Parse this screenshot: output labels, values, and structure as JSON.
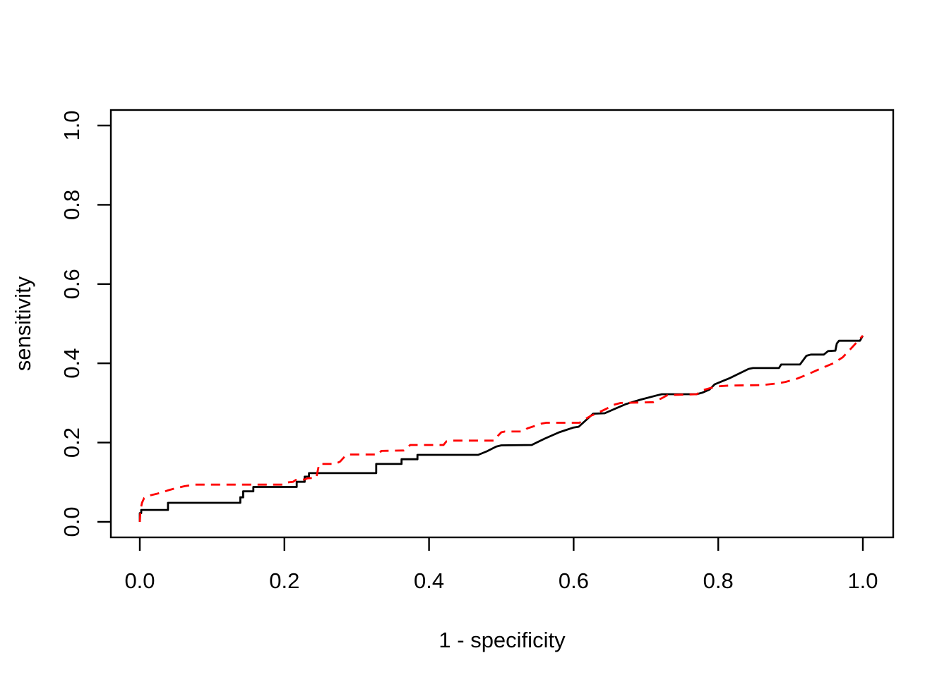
{
  "figure": {
    "background": "#ffffff",
    "frame_color": "#000000"
  },
  "chart_data": {
    "type": "line",
    "subtype": "roc-step-curves",
    "title": "",
    "xlabel": "1 - specificity",
    "ylabel": "sensitivity",
    "xlim": [
      0,
      1
    ],
    "ylim": [
      0,
      1
    ],
    "grid": false,
    "legend_position": "none",
    "xticks": {
      "values": [
        0.0,
        0.2,
        0.4,
        0.6,
        0.8,
        1.0
      ],
      "labels": [
        "0.0",
        "0.2",
        "0.4",
        "0.6",
        "0.8",
        "1.0"
      ]
    },
    "yticks": {
      "values": [
        0.0,
        0.2,
        0.4,
        0.6,
        0.8,
        1.0
      ],
      "labels": [
        "0.0",
        "0.2",
        "0.4",
        "0.6",
        "0.8",
        "1.0"
      ]
    },
    "series": [
      {
        "name": "roc-curve-solid-black",
        "color": "#000000",
        "style": "solid",
        "points": [
          [
            0.0,
            0.0
          ],
          [
            0.0,
            0.022
          ],
          [
            0.002,
            0.022
          ],
          [
            0.002,
            0.03
          ],
          [
            0.039,
            0.03
          ],
          [
            0.039,
            0.048
          ],
          [
            0.139,
            0.048
          ],
          [
            0.139,
            0.062
          ],
          [
            0.143,
            0.062
          ],
          [
            0.143,
            0.077
          ],
          [
            0.157,
            0.077
          ],
          [
            0.157,
            0.088
          ],
          [
            0.217,
            0.088
          ],
          [
            0.217,
            0.101
          ],
          [
            0.228,
            0.101
          ],
          [
            0.228,
            0.114
          ],
          [
            0.234,
            0.114
          ],
          [
            0.234,
            0.123
          ],
          [
            0.327,
            0.123
          ],
          [
            0.327,
            0.146
          ],
          [
            0.362,
            0.146
          ],
          [
            0.362,
            0.158
          ],
          [
            0.384,
            0.158
          ],
          [
            0.384,
            0.169
          ],
          [
            0.468,
            0.169
          ],
          [
            0.48,
            0.178
          ],
          [
            0.493,
            0.19
          ],
          [
            0.5,
            0.193
          ],
          [
            0.542,
            0.194
          ],
          [
            0.56,
            0.21
          ],
          [
            0.58,
            0.226
          ],
          [
            0.6,
            0.238
          ],
          [
            0.607,
            0.24
          ],
          [
            0.627,
            0.273
          ],
          [
            0.643,
            0.274
          ],
          [
            0.653,
            0.282
          ],
          [
            0.672,
            0.297
          ],
          [
            0.692,
            0.308
          ],
          [
            0.715,
            0.319
          ],
          [
            0.722,
            0.322
          ],
          [
            0.77,
            0.322
          ],
          [
            0.778,
            0.326
          ],
          [
            0.788,
            0.334
          ],
          [
            0.795,
            0.347
          ],
          [
            0.815,
            0.362
          ],
          [
            0.842,
            0.386
          ],
          [
            0.848,
            0.388
          ],
          [
            0.884,
            0.388
          ],
          [
            0.887,
            0.397
          ],
          [
            0.913,
            0.397
          ],
          [
            0.922,
            0.419
          ],
          [
            0.928,
            0.422
          ],
          [
            0.946,
            0.422
          ],
          [
            0.952,
            0.431
          ],
          [
            0.962,
            0.432
          ],
          [
            0.964,
            0.45
          ],
          [
            0.967,
            0.457
          ],
          [
            0.996,
            0.457
          ],
          [
            1.0,
            0.47
          ]
        ]
      },
      {
        "name": "roc-curve-dashed-red",
        "color": "#ff0000",
        "style": "dashed",
        "points": [
          [
            0.0,
            0.0
          ],
          [
            0.001,
            0.03
          ],
          [
            0.003,
            0.048
          ],
          [
            0.006,
            0.06
          ],
          [
            0.015,
            0.067
          ],
          [
            0.028,
            0.073
          ],
          [
            0.04,
            0.08
          ],
          [
            0.052,
            0.086
          ],
          [
            0.062,
            0.09
          ],
          [
            0.075,
            0.094
          ],
          [
            0.198,
            0.094
          ],
          [
            0.202,
            0.099
          ],
          [
            0.212,
            0.101
          ],
          [
            0.216,
            0.106
          ],
          [
            0.228,
            0.107
          ],
          [
            0.232,
            0.11
          ],
          [
            0.244,
            0.111
          ],
          [
            0.248,
            0.146
          ],
          [
            0.27,
            0.146
          ],
          [
            0.277,
            0.152
          ],
          [
            0.284,
            0.166
          ],
          [
            0.288,
            0.17
          ],
          [
            0.33,
            0.17
          ],
          [
            0.334,
            0.179
          ],
          [
            0.365,
            0.18
          ],
          [
            0.374,
            0.194
          ],
          [
            0.42,
            0.194
          ],
          [
            0.424,
            0.203
          ],
          [
            0.43,
            0.205
          ],
          [
            0.49,
            0.205
          ],
          [
            0.494,
            0.215
          ],
          [
            0.5,
            0.226
          ],
          [
            0.505,
            0.228
          ],
          [
            0.53,
            0.228
          ],
          [
            0.536,
            0.236
          ],
          [
            0.548,
            0.243
          ],
          [
            0.556,
            0.248
          ],
          [
            0.562,
            0.25
          ],
          [
            0.608,
            0.25
          ],
          [
            0.615,
            0.258
          ],
          [
            0.624,
            0.268
          ],
          [
            0.63,
            0.272
          ],
          [
            0.645,
            0.285
          ],
          [
            0.655,
            0.295
          ],
          [
            0.665,
            0.3
          ],
          [
            0.71,
            0.302
          ],
          [
            0.722,
            0.312
          ],
          [
            0.73,
            0.32
          ],
          [
            0.77,
            0.322
          ],
          [
            0.78,
            0.333
          ],
          [
            0.79,
            0.338
          ],
          [
            0.8,
            0.342
          ],
          [
            0.815,
            0.344
          ],
          [
            0.86,
            0.345
          ],
          [
            0.88,
            0.349
          ],
          [
            0.893,
            0.353
          ],
          [
            0.91,
            0.362
          ],
          [
            0.926,
            0.374
          ],
          [
            0.942,
            0.387
          ],
          [
            0.959,
            0.4
          ],
          [
            0.972,
            0.415
          ],
          [
            0.981,
            0.432
          ],
          [
            0.99,
            0.45
          ],
          [
            1.0,
            0.47
          ]
        ]
      }
    ]
  }
}
